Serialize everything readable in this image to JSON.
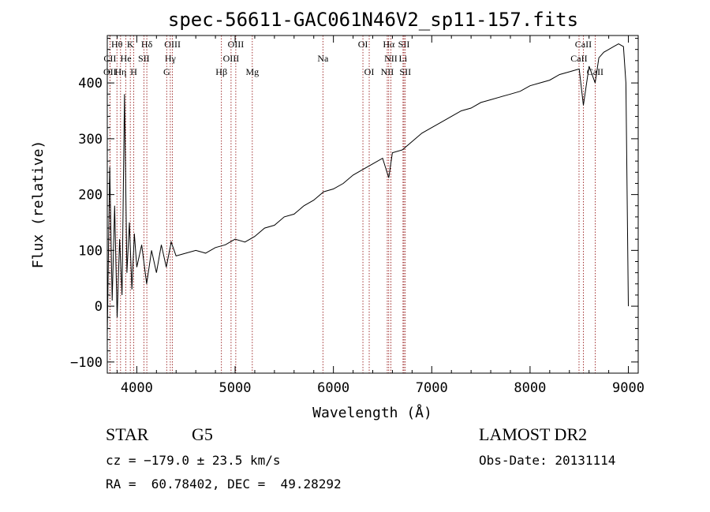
{
  "chart_data": {
    "type": "line",
    "title": "spec-56611-GAC061N46V2_sp11-157.fits",
    "xlabel": "Wavelength (Å)",
    "ylabel": "Flux (relative)",
    "xlim": [
      3700,
      9100
    ],
    "ylim": [
      -120,
      485
    ],
    "x_ticks": [
      4000,
      5000,
      6000,
      7000,
      8000,
      9000
    ],
    "y_ticks": [
      -100,
      0,
      100,
      200,
      300,
      400
    ],
    "grid": false,
    "series": [
      {
        "x": [
          3700,
          3725,
          3750,
          3775,
          3800,
          3825,
          3850,
          3875,
          3900,
          3925,
          3950,
          3975,
          4000,
          4050,
          4100,
          4150,
          4200,
          4250,
          4300,
          4350,
          4400,
          4500,
          4600,
          4700,
          4800,
          4900,
          5000,
          5100,
          5200,
          5300,
          5400,
          5500,
          5600,
          5700,
          5800,
          5900,
          6000,
          6100,
          6200,
          6300,
          6400,
          6500,
          6563,
          6600,
          6700,
          6800,
          6900,
          7000,
          7100,
          7200,
          7300,
          7400,
          7500,
          7600,
          7700,
          7800,
          7900,
          8000,
          8100,
          8200,
          8300,
          8400,
          8500,
          8542,
          8600,
          8662,
          8700,
          8750,
          8800,
          8850,
          8900,
          8950,
          8975,
          9000
        ],
        "y": [
          -50,
          250,
          10,
          180,
          -20,
          120,
          20,
          380,
          60,
          150,
          30,
          130,
          70,
          110,
          40,
          100,
          60,
          110,
          70,
          115,
          90,
          95,
          100,
          95,
          105,
          110,
          120,
          115,
          125,
          140,
          145,
          160,
          165,
          180,
          190,
          205,
          210,
          220,
          235,
          245,
          255,
          265,
          230,
          275,
          280,
          295,
          310,
          320,
          330,
          340,
          350,
          355,
          365,
          370,
          375,
          380,
          385,
          395,
          400,
          405,
          415,
          420,
          425,
          360,
          430,
          400,
          445,
          455,
          460,
          465,
          470,
          465,
          400,
          0
        ]
      }
    ],
    "line_markers": [
      {
        "label": "Hθ",
        "x": 3798,
        "row": 0
      },
      {
        "label": "K",
        "x": 3934,
        "row": 0
      },
      {
        "label": "Hδ",
        "x": 4102,
        "row": 0
      },
      {
        "label": "OIII",
        "x": 4363,
        "row": 0
      },
      {
        "label": "OIII",
        "x": 5007,
        "row": 0
      },
      {
        "label": "OI",
        "x": 6300,
        "row": 0
      },
      {
        "label": "Hα",
        "x": 6563,
        "row": 0
      },
      {
        "label": "SII",
        "x": 6717,
        "row": 0
      },
      {
        "label": "CaII",
        "x": 8542,
        "row": 0
      },
      {
        "label": "CII",
        "x": 3727,
        "row": 1
      },
      {
        "label": "He",
        "x": 3889,
        "row": 1
      },
      {
        "label": "SII",
        "x": 4072,
        "row": 1
      },
      {
        "label": "Hγ",
        "x": 4341,
        "row": 1
      },
      {
        "label": "OIII",
        "x": 4959,
        "row": 1
      },
      {
        "label": "Na",
        "x": 5893,
        "row": 1
      },
      {
        "label": "NII",
        "x": 6584,
        "row": 1
      },
      {
        "label": "Li",
        "x": 6708,
        "row": 1
      },
      {
        "label": "CaII",
        "x": 8498,
        "row": 1
      },
      {
        "label": "OII",
        "x": 3727,
        "row": 2
      },
      {
        "label": "Hη",
        "x": 3835,
        "row": 2
      },
      {
        "label": "H",
        "x": 3969,
        "row": 2
      },
      {
        "label": "G",
        "x": 4304,
        "row": 2
      },
      {
        "label": "Hβ",
        "x": 4861,
        "row": 2
      },
      {
        "label": "Mg",
        "x": 5175,
        "row": 2
      },
      {
        "label": "OI",
        "x": 6364,
        "row": 2
      },
      {
        "label": "NII",
        "x": 6548,
        "row": 2
      },
      {
        "label": "SII",
        "x": 6731,
        "row": 2
      },
      {
        "label": "CaII",
        "x": 8662,
        "row": 2
      }
    ]
  },
  "info": {
    "object_class": "STAR",
    "subclass": "G5",
    "survey": "LAMOST DR2",
    "redshift": "cz = −179.0 ± 23.5 km/s",
    "obs_date": "Obs-Date: 20131114",
    "coords": "RA =  60.78402, DEC =  49.28292"
  },
  "colors": {
    "line": "#000000",
    "marker": "#8b0000",
    "axis": "#000000"
  }
}
